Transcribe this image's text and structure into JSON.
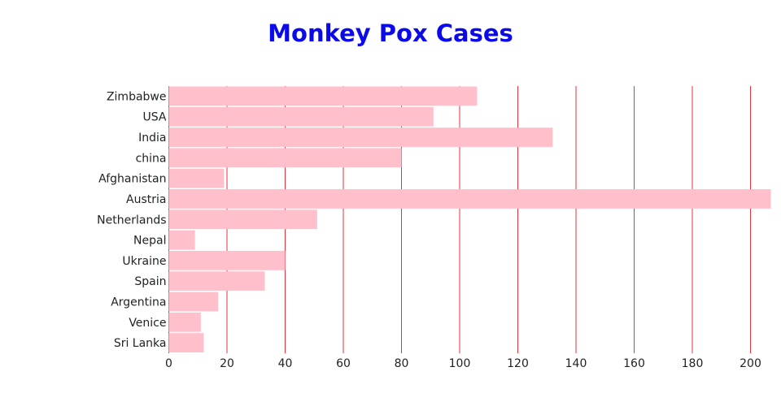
{
  "chart_data": {
    "type": "bar",
    "orientation": "horizontal",
    "title": "Monkey Pox Cases",
    "xlabel": "",
    "ylabel": "",
    "categories": [
      "Zimbabwe",
      "USA",
      "India",
      "china",
      "Afghanistan",
      "Austria",
      "Netherlands",
      "Nepal",
      "Ukraine",
      "Spain",
      "Argentina",
      "Venice",
      "Sri Lanka"
    ],
    "values": [
      106,
      91,
      132,
      80,
      19,
      207,
      51,
      9,
      40,
      33,
      17,
      11,
      12
    ],
    "xlim": [
      0,
      207
    ],
    "xticks": [
      0,
      20,
      40,
      60,
      80,
      100,
      120,
      140,
      160,
      180,
      200
    ],
    "grid": "vertical",
    "colors": {
      "bar": "#ffc0cb",
      "grid": "#e8323c",
      "title": "#0b0bea",
      "text": "#222222"
    }
  }
}
